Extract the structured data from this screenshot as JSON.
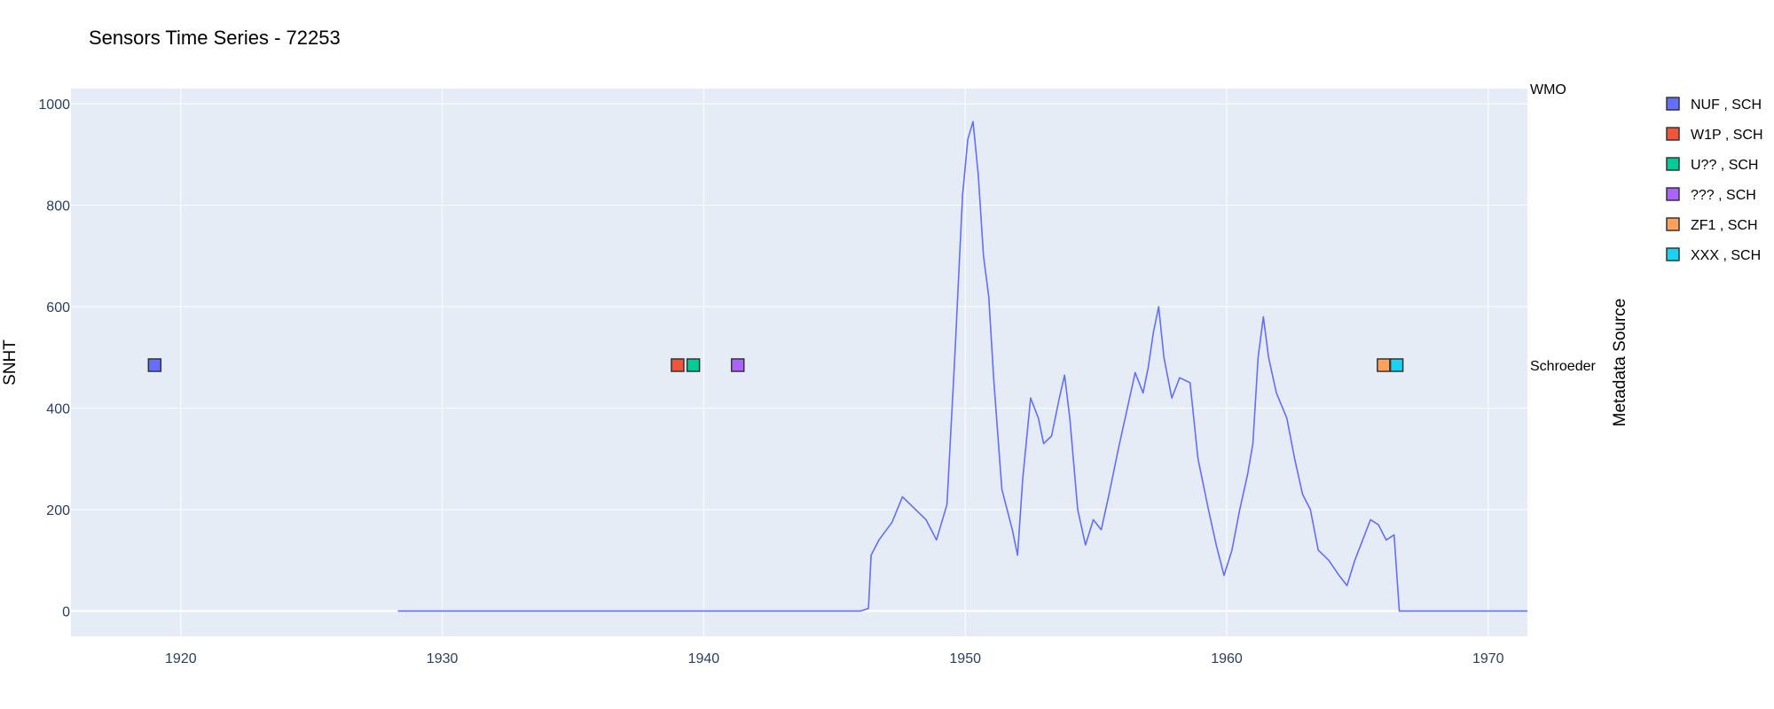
{
  "chart_data": {
    "type": "line",
    "title": "Sensors Time Series - 72253",
    "ylabel": "SNHT",
    "y2label": "Metadata Source",
    "xlim": [
      1915.8,
      1971.5
    ],
    "ylim": [
      -50,
      1030
    ],
    "x_ticks": [
      1920,
      1930,
      1940,
      1950,
      1960,
      1970
    ],
    "y_ticks": [
      0,
      200,
      400,
      600,
      800,
      1000
    ],
    "y2_categories": [
      "WMO",
      "Schroeder"
    ],
    "grid": true,
    "legend_position": "right",
    "colors": {
      "line": "#636efa",
      "plot_bg": "#e5ecf6",
      "grid": "#ffffff"
    },
    "series": [
      {
        "values": [
          [
            1928.3,
            0
          ],
          [
            1946.0,
            0
          ],
          [
            1946.3,
            5
          ],
          [
            1946.4,
            110
          ],
          [
            1946.7,
            140
          ],
          [
            1947.2,
            175
          ],
          [
            1947.6,
            225
          ],
          [
            1948.0,
            205
          ],
          [
            1948.5,
            180
          ],
          [
            1948.9,
            140
          ],
          [
            1949.3,
            210
          ],
          [
            1949.6,
            500
          ],
          [
            1949.9,
            820
          ],
          [
            1950.1,
            930
          ],
          [
            1950.3,
            965
          ],
          [
            1950.5,
            860
          ],
          [
            1950.7,
            700
          ],
          [
            1950.9,
            620
          ],
          [
            1951.1,
            450
          ],
          [
            1951.4,
            240
          ],
          [
            1951.8,
            160
          ],
          [
            1952.0,
            110
          ],
          [
            1952.2,
            260
          ],
          [
            1952.5,
            420
          ],
          [
            1952.8,
            380
          ],
          [
            1953.0,
            330
          ],
          [
            1953.3,
            345
          ],
          [
            1953.6,
            420
          ],
          [
            1953.8,
            465
          ],
          [
            1954.0,
            380
          ],
          [
            1954.3,
            200
          ],
          [
            1954.6,
            130
          ],
          [
            1954.9,
            180
          ],
          [
            1955.2,
            160
          ],
          [
            1955.5,
            230
          ],
          [
            1955.9,
            330
          ],
          [
            1956.2,
            400
          ],
          [
            1956.5,
            470
          ],
          [
            1956.8,
            430
          ],
          [
            1957.0,
            480
          ],
          [
            1957.2,
            550
          ],
          [
            1957.4,
            600
          ],
          [
            1957.6,
            500
          ],
          [
            1957.9,
            420
          ],
          [
            1958.2,
            460
          ],
          [
            1958.6,
            450
          ],
          [
            1958.9,
            300
          ],
          [
            1959.3,
            200
          ],
          [
            1959.6,
            130
          ],
          [
            1959.9,
            70
          ],
          [
            1960.2,
            120
          ],
          [
            1960.5,
            200
          ],
          [
            1960.8,
            270
          ],
          [
            1961.0,
            330
          ],
          [
            1961.2,
            500
          ],
          [
            1961.4,
            580
          ],
          [
            1961.6,
            500
          ],
          [
            1961.9,
            430
          ],
          [
            1962.3,
            380
          ],
          [
            1962.6,
            300
          ],
          [
            1962.9,
            230
          ],
          [
            1963.2,
            200
          ],
          [
            1963.5,
            120
          ],
          [
            1963.9,
            100
          ],
          [
            1964.3,
            70
          ],
          [
            1964.6,
            50
          ],
          [
            1964.9,
            100
          ],
          [
            1965.2,
            140
          ],
          [
            1965.5,
            180
          ],
          [
            1965.8,
            170
          ],
          [
            1966.1,
            140
          ],
          [
            1966.4,
            150
          ],
          [
            1966.6,
            0
          ],
          [
            1971.5,
            0
          ]
        ]
      }
    ],
    "metadata_points": [
      {
        "x": 1919.0,
        "category": "Schroeder",
        "color": "#636efa"
      },
      {
        "x": 1939.0,
        "category": "Schroeder",
        "color": "#ef553b"
      },
      {
        "x": 1939.6,
        "category": "Schroeder",
        "color": "#00cc96"
      },
      {
        "x": 1941.3,
        "category": "Schroeder",
        "color": "#ab63fa"
      },
      {
        "x": 1966.0,
        "category": "Schroeder",
        "color": "#ffa15a"
      },
      {
        "x": 1966.5,
        "category": "Schroeder",
        "color": "#19d3f3"
      }
    ],
    "legend": [
      {
        "name": "NUF , SCH",
        "color": "#636efa"
      },
      {
        "name": "W1P , SCH",
        "color": "#ef553b"
      },
      {
        "name": "U?? , SCH",
        "color": "#00cc96"
      },
      {
        "name": "??? , SCH",
        "color": "#ab63fa"
      },
      {
        "name": "ZF1 , SCH",
        "color": "#ffa15a"
      },
      {
        "name": "XXX , SCH",
        "color": "#19d3f3"
      }
    ]
  }
}
